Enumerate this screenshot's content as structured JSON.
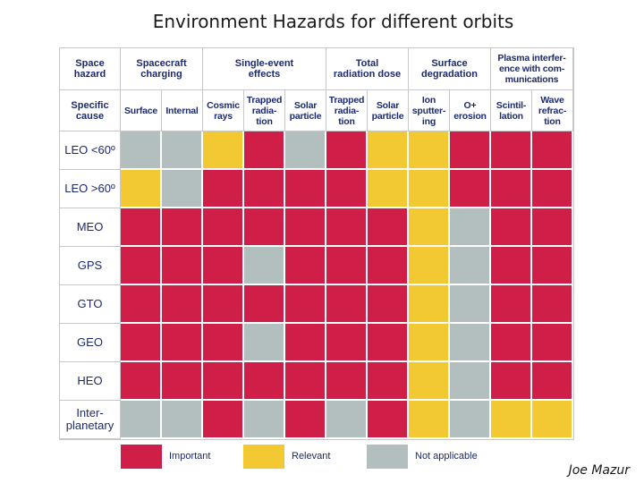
{
  "title": "Environment Hazards for different orbits",
  "author": "Joe Mazur",
  "colors": {
    "important": "#cf1f48",
    "relevant": "#f2c933",
    "not_applicable": "#b3bfbf",
    "header_text": "#1c2a6e"
  },
  "table": {
    "corner_top": "Space\nhazard",
    "corner_bottom": "Specific\ncause",
    "groups": [
      {
        "label": "Spacecraft\ncharging",
        "span": 2
      },
      {
        "label": "Single-event\neffects",
        "span": 3
      },
      {
        "label": "Total\nradiation dose",
        "span": 2
      },
      {
        "label": "Surface\ndegradation",
        "span": 2
      },
      {
        "label": "Plasma interfer-\nence with com-\nmunications",
        "span": 2
      }
    ],
    "causes": [
      "Surface",
      "Internal",
      "Cosmic\nrays",
      "Trapped\nradia-\ntion",
      "Solar\nparticle",
      "Trapped\nradia-\ntion",
      "Solar\nparticle",
      "Ion\nsputter-\ning",
      "O+\nerosion",
      "Scintil-\nlation",
      "Wave\nrefrac-\ntion"
    ],
    "rows": [
      {
        "orbit": "LEO <60º",
        "cells": [
          "N",
          "N",
          "R",
          "I",
          "N",
          "I",
          "R",
          "R",
          "I",
          "I",
          "I"
        ]
      },
      {
        "orbit": "LEO >60º",
        "cells": [
          "R",
          "N",
          "I",
          "I",
          "I",
          "I",
          "R",
          "R",
          "I",
          "I",
          "I"
        ]
      },
      {
        "orbit": "MEO",
        "cells": [
          "I",
          "I",
          "I",
          "I",
          "I",
          "I",
          "I",
          "R",
          "N",
          "I",
          "I"
        ]
      },
      {
        "orbit": "GPS",
        "cells": [
          "I",
          "I",
          "I",
          "N",
          "I",
          "I",
          "I",
          "R",
          "N",
          "I",
          "I"
        ]
      },
      {
        "orbit": "GTO",
        "cells": [
          "I",
          "I",
          "I",
          "I",
          "I",
          "I",
          "I",
          "R",
          "N",
          "I",
          "I"
        ]
      },
      {
        "orbit": "GEO",
        "cells": [
          "I",
          "I",
          "I",
          "N",
          "I",
          "I",
          "I",
          "R",
          "N",
          "I",
          "I"
        ]
      },
      {
        "orbit": "HEO",
        "cells": [
          "I",
          "I",
          "I",
          "I",
          "I",
          "I",
          "I",
          "R",
          "N",
          "I",
          "I"
        ]
      },
      {
        "orbit": "Inter-\nplanetary",
        "cells": [
          "N",
          "N",
          "I",
          "N",
          "I",
          "N",
          "I",
          "R",
          "N",
          "R",
          "R"
        ]
      }
    ]
  },
  "legend": [
    {
      "key": "I",
      "label": "Important"
    },
    {
      "key": "R",
      "label": "Relevant"
    },
    {
      "key": "N",
      "label": "Not applicable"
    }
  ]
}
